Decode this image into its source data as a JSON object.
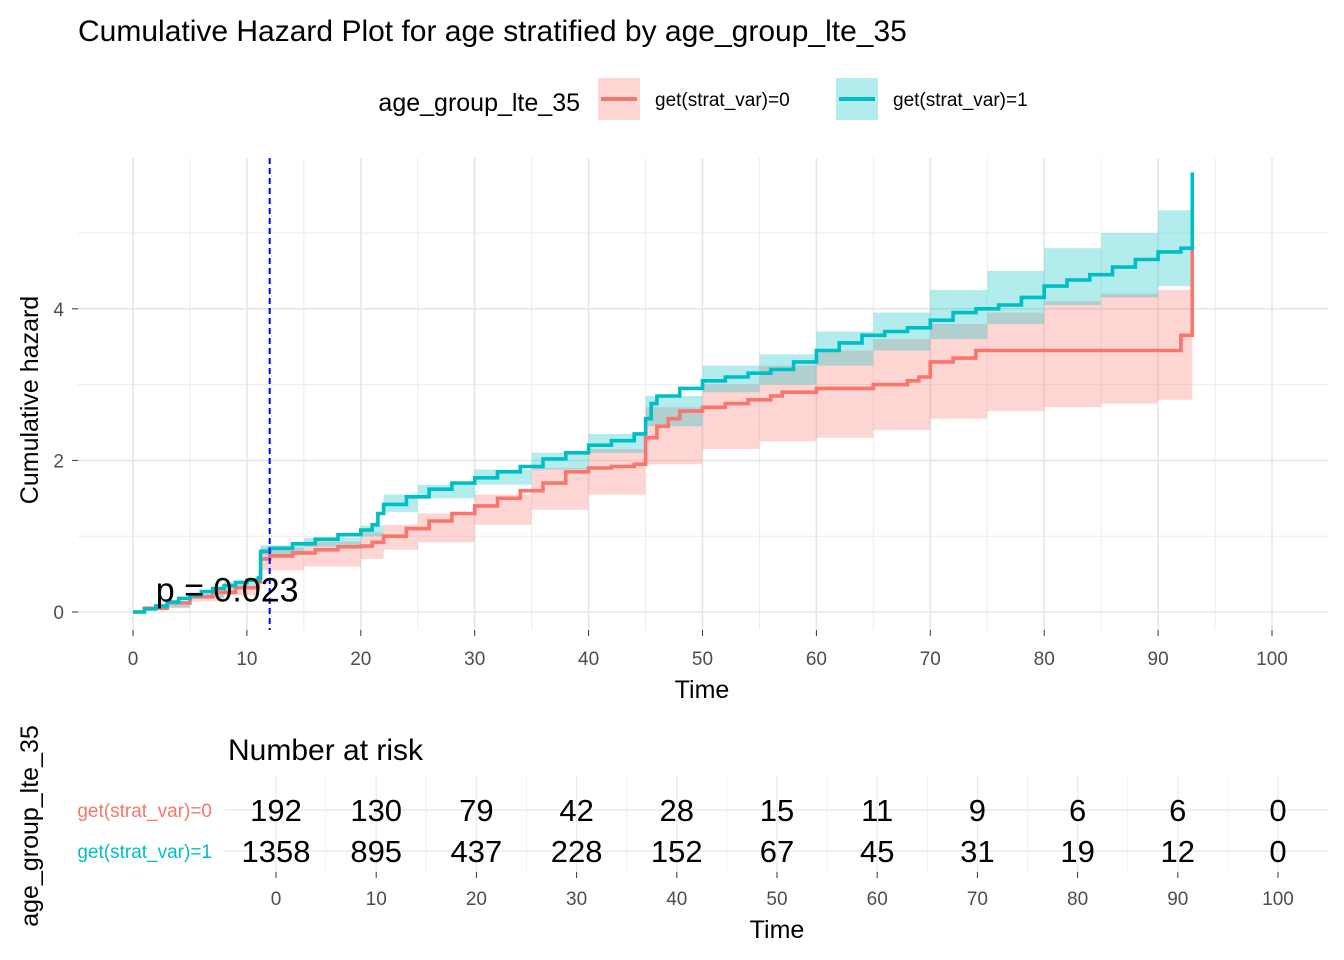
{
  "chart_data": {
    "type": "line",
    "title": "Cumulative Hazard Plot for age stratified by age_group_lte_35",
    "xlabel": "Time",
    "ylabel": "Cumulative hazard",
    "xlim": [
      0,
      100
    ],
    "ylim": [
      0,
      5.8
    ],
    "x_ticks": [
      0,
      10,
      20,
      30,
      40,
      50,
      60,
      70,
      80,
      90,
      100
    ],
    "y_ticks": [
      0,
      2,
      4
    ],
    "grid": true,
    "legend": {
      "title": "age_group_lte_35",
      "placement": "top",
      "entries": [
        "get(strat_var)=0",
        "get(strat_var)=1"
      ]
    },
    "annotation": {
      "text": "p = 0.023",
      "x": 2,
      "y": 0.15
    },
    "reference_line": {
      "x": 12,
      "color": "#0000ff",
      "style": "dashed"
    },
    "series": [
      {
        "name": "get(strat_var)=0",
        "color": "#f8766d",
        "step": [
          [
            0,
            0
          ],
          [
            1,
            0.05
          ],
          [
            3,
            0.12
          ],
          [
            5,
            0.2
          ],
          [
            7,
            0.26
          ],
          [
            9,
            0.32
          ],
          [
            11,
            0.4
          ],
          [
            11.2,
            0.7
          ],
          [
            12,
            0.74
          ],
          [
            14,
            0.78
          ],
          [
            16,
            0.82
          ],
          [
            18,
            0.86
          ],
          [
            20,
            0.87
          ],
          [
            21,
            0.92
          ],
          [
            22,
            1.0
          ],
          [
            24,
            1.1
          ],
          [
            26,
            1.2
          ],
          [
            28,
            1.3
          ],
          [
            30,
            1.4
          ],
          [
            32,
            1.5
          ],
          [
            34,
            1.6
          ],
          [
            36,
            1.7
          ],
          [
            38,
            1.85
          ],
          [
            40,
            1.9
          ],
          [
            42,
            1.92
          ],
          [
            44,
            1.95
          ],
          [
            45,
            2.3
          ],
          [
            46,
            2.45
          ],
          [
            47,
            2.55
          ],
          [
            48,
            2.65
          ],
          [
            50,
            2.7
          ],
          [
            52,
            2.75
          ],
          [
            54,
            2.8
          ],
          [
            56,
            2.85
          ],
          [
            57,
            2.9
          ],
          [
            60,
            2.95
          ],
          [
            65,
            3.0
          ],
          [
            68,
            3.05
          ],
          [
            69,
            3.1
          ],
          [
            70,
            3.3
          ],
          [
            72,
            3.35
          ],
          [
            74,
            3.45
          ],
          [
            80,
            3.45
          ],
          [
            90,
            3.45
          ],
          [
            92,
            3.65
          ],
          [
            93,
            4.8
          ]
        ],
        "ci_lower": [
          [
            0,
            0
          ],
          [
            2,
            0.05
          ],
          [
            5,
            0.14
          ],
          [
            8,
            0.22
          ],
          [
            11,
            0.3
          ],
          [
            11.2,
            0.55
          ],
          [
            15,
            0.6
          ],
          [
            20,
            0.7
          ],
          [
            22,
            0.82
          ],
          [
            25,
            0.92
          ],
          [
            30,
            1.15
          ],
          [
            35,
            1.35
          ],
          [
            40,
            1.55
          ],
          [
            45,
            1.95
          ],
          [
            50,
            2.15
          ],
          [
            55,
            2.25
          ],
          [
            60,
            2.3
          ],
          [
            65,
            2.4
          ],
          [
            70,
            2.55
          ],
          [
            75,
            2.65
          ],
          [
            80,
            2.7
          ],
          [
            85,
            2.75
          ],
          [
            90,
            2.8
          ],
          [
            93,
            2.85
          ]
        ],
        "ci_upper": [
          [
            0,
            0
          ],
          [
            2,
            0.09
          ],
          [
            5,
            0.24
          ],
          [
            8,
            0.34
          ],
          [
            11,
            0.48
          ],
          [
            11.2,
            0.85
          ],
          [
            15,
            0.93
          ],
          [
            20,
            1.05
          ],
          [
            22,
            1.15
          ],
          [
            25,
            1.3
          ],
          [
            30,
            1.55
          ],
          [
            35,
            1.9
          ],
          [
            40,
            2.15
          ],
          [
            45,
            2.7
          ],
          [
            50,
            3.0
          ],
          [
            55,
            3.25
          ],
          [
            60,
            3.45
          ],
          [
            65,
            3.6
          ],
          [
            70,
            3.8
          ],
          [
            75,
            3.95
          ],
          [
            80,
            4.1
          ],
          [
            85,
            4.2
          ],
          [
            90,
            4.25
          ],
          [
            93,
            4.85
          ]
        ]
      },
      {
        "name": "get(strat_var)=1",
        "color": "#00bfc4",
        "step": [
          [
            0,
            0
          ],
          [
            1,
            0.04
          ],
          [
            2,
            0.08
          ],
          [
            3,
            0.13
          ],
          [
            4,
            0.18
          ],
          [
            5,
            0.22
          ],
          [
            6,
            0.27
          ],
          [
            7,
            0.31
          ],
          [
            8,
            0.35
          ],
          [
            9,
            0.39
          ],
          [
            10,
            0.42
          ],
          [
            11,
            0.45
          ],
          [
            11.2,
            0.8
          ],
          [
            12,
            0.84
          ],
          [
            14,
            0.9
          ],
          [
            16,
            0.96
          ],
          [
            18,
            1.02
          ],
          [
            20,
            1.08
          ],
          [
            21,
            1.15
          ],
          [
            21.5,
            1.3
          ],
          [
            22,
            1.42
          ],
          [
            24,
            1.52
          ],
          [
            26,
            1.62
          ],
          [
            28,
            1.7
          ],
          [
            30,
            1.77
          ],
          [
            32,
            1.85
          ],
          [
            34,
            1.92
          ],
          [
            36,
            2.02
          ],
          [
            38,
            2.1
          ],
          [
            40,
            2.2
          ],
          [
            42,
            2.26
          ],
          [
            44,
            2.35
          ],
          [
            45,
            2.55
          ],
          [
            45.5,
            2.75
          ],
          [
            46,
            2.85
          ],
          [
            48,
            2.95
          ],
          [
            50,
            3.05
          ],
          [
            52,
            3.1
          ],
          [
            54,
            3.15
          ],
          [
            56,
            3.2
          ],
          [
            58,
            3.3
          ],
          [
            60,
            3.45
          ],
          [
            62,
            3.55
          ],
          [
            64,
            3.65
          ],
          [
            66,
            3.7
          ],
          [
            68,
            3.75
          ],
          [
            70,
            3.85
          ],
          [
            72,
            3.95
          ],
          [
            74,
            4.0
          ],
          [
            76,
            4.05
          ],
          [
            78,
            4.15
          ],
          [
            80,
            4.3
          ],
          [
            82,
            4.38
          ],
          [
            84,
            4.45
          ],
          [
            86,
            4.55
          ],
          [
            88,
            4.65
          ],
          [
            90,
            4.75
          ],
          [
            92,
            4.8
          ],
          [
            93,
            5.8
          ]
        ],
        "ci_lower": [
          [
            0,
            0
          ],
          [
            2,
            0.06
          ],
          [
            5,
            0.19
          ],
          [
            8,
            0.3
          ],
          [
            11,
            0.4
          ],
          [
            11.2,
            0.75
          ],
          [
            15,
            0.86
          ],
          [
            20,
            1.0
          ],
          [
            22,
            1.32
          ],
          [
            25,
            1.5
          ],
          [
            30,
            1.68
          ],
          [
            35,
            1.88
          ],
          [
            40,
            2.1
          ],
          [
            45,
            2.45
          ],
          [
            50,
            2.9
          ],
          [
            55,
            3.0
          ],
          [
            60,
            3.25
          ],
          [
            65,
            3.45
          ],
          [
            70,
            3.6
          ],
          [
            75,
            3.8
          ],
          [
            80,
            4.05
          ],
          [
            85,
            4.15
          ],
          [
            90,
            4.3
          ],
          [
            93,
            4.3
          ]
        ],
        "ci_upper": [
          [
            0,
            0
          ],
          [
            2,
            0.1
          ],
          [
            5,
            0.26
          ],
          [
            8,
            0.4
          ],
          [
            11,
            0.52
          ],
          [
            11.2,
            0.88
          ],
          [
            15,
            0.98
          ],
          [
            20,
            1.14
          ],
          [
            22,
            1.55
          ],
          [
            25,
            1.68
          ],
          [
            30,
            1.88
          ],
          [
            35,
            2.1
          ],
          [
            40,
            2.35
          ],
          [
            45,
            2.85
          ],
          [
            50,
            3.25
          ],
          [
            55,
            3.4
          ],
          [
            60,
            3.7
          ],
          [
            65,
            3.95
          ],
          [
            70,
            4.25
          ],
          [
            75,
            4.5
          ],
          [
            80,
            4.8
          ],
          [
            85,
            5.0
          ],
          [
            90,
            5.3
          ],
          [
            93,
            5.4
          ]
        ]
      }
    ]
  },
  "risk_table": {
    "title": "Number at risk",
    "y_axis_title": "age_group_lte_35",
    "xlabel": "Time",
    "times": [
      0,
      10,
      20,
      30,
      40,
      50,
      60,
      70,
      80,
      90,
      100
    ],
    "rows": [
      {
        "label": "get(strat_var)=0",
        "color": "#f8766d",
        "values": [
          "192",
          "130",
          "79",
          "42",
          "28",
          "15",
          "11",
          "9",
          "6",
          "6",
          "0"
        ]
      },
      {
        "label": "get(strat_var)=1",
        "color": "#00bfc4",
        "values": [
          "1358",
          "895",
          "437",
          "228",
          "152",
          "67",
          "45",
          "31",
          "19",
          "12",
          "0"
        ]
      }
    ]
  }
}
